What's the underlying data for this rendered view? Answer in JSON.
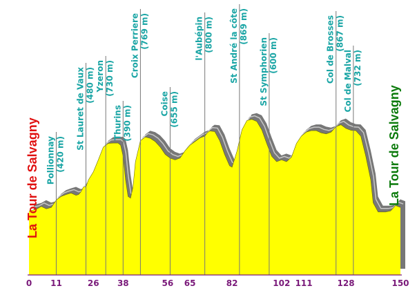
{
  "chart_data": {
    "type": "area",
    "start_label": "La Tour de Salvagny",
    "end_label": "La Tour de Salvagny",
    "colors": {
      "fill": "#ffff00",
      "shadow": "#777777",
      "shadow_light": "#c8c8c8",
      "start_text": "#e01010",
      "end_text": "#0a7a0a",
      "waypoint_text": "#1aa5a5",
      "tick_text": "#7a1a7a",
      "axis": "#7a1a7a",
      "marker": "#777777"
    },
    "x_ticks": [
      "0",
      "11",
      "26",
      "38",
      "56",
      "65",
      "82",
      "102",
      "111",
      "128",
      "150"
    ],
    "xlim": [
      0,
      150
    ],
    "waypoints": [
      {
        "name": "Pollionnay",
        "elev": "(420 m)",
        "km": 11
      },
      {
        "name": "St Lauret de Vaux",
        "elev": "(480 m)",
        "km": 23
      },
      {
        "name": "Yzeron",
        "elev": "(730 m)",
        "km": 31
      },
      {
        "name": "Thurins",
        "elev": "(390 m)",
        "km": 38
      },
      {
        "name": "Croix Perriere",
        "elev": "(769 m)",
        "km": 45
      },
      {
        "name": "Coise",
        "elev": "(655 m)",
        "km": 57
      },
      {
        "name": "l'Aubépin",
        "elev": "(800 m)",
        "km": 71
      },
      {
        "name": "St André la côte",
        "elev": "(869 m)",
        "km": 85
      },
      {
        "name": "St Symphorien",
        "elev": "(600 m)",
        "km": 97
      },
      {
        "name": "Col de Brosses",
        "elev": "(867 m)",
        "km": 124
      },
      {
        "name": "Col de Malval",
        "elev": "(732 m)",
        "km": 131
      }
    ],
    "profile": [
      [
        0,
        350
      ],
      [
        3,
        360
      ],
      [
        5,
        375
      ],
      [
        7,
        362
      ],
      [
        9,
        370
      ],
      [
        11,
        410
      ],
      [
        13,
        430
      ],
      [
        15,
        440
      ],
      [
        17,
        448
      ],
      [
        19,
        436
      ],
      [
        20,
        440
      ],
      [
        21,
        455
      ],
      [
        22,
        482
      ],
      [
        23,
        482
      ],
      [
        24,
        520
      ],
      [
        26,
        565
      ],
      [
        28,
        630
      ],
      [
        30,
        700
      ],
      [
        32,
        720
      ],
      [
        34,
        722
      ],
      [
        36,
        722
      ],
      [
        37,
        710
      ],
      [
        38,
        650
      ],
      [
        39,
        520
      ],
      [
        40,
        430
      ],
      [
        41,
        420
      ],
      [
        42,
        480
      ],
      [
        43,
        620
      ],
      [
        45,
        735
      ],
      [
        47,
        755
      ],
      [
        49,
        748
      ],
      [
        51,
        730
      ],
      [
        53,
        700
      ],
      [
        55,
        660
      ],
      [
        57,
        640
      ],
      [
        59,
        630
      ],
      [
        61,
        640
      ],
      [
        63,
        680
      ],
      [
        65,
        710
      ],
      [
        67,
        730
      ],
      [
        69,
        750
      ],
      [
        71,
        760
      ],
      [
        72,
        778
      ],
      [
        73,
        788
      ],
      [
        75,
        785
      ],
      [
        77,
        735
      ],
      [
        79,
        660
      ],
      [
        81,
        598
      ],
      [
        82,
        590
      ],
      [
        84,
        678
      ],
      [
        86,
        795
      ],
      [
        88,
        845
      ],
      [
        90,
        852
      ],
      [
        92,
        840
      ],
      [
        94,
        795
      ],
      [
        96,
        720
      ],
      [
        98,
        650
      ],
      [
        100,
        620
      ],
      [
        102,
        630
      ],
      [
        104,
        620
      ],
      [
        106,
        645
      ],
      [
        108,
        720
      ],
      [
        110,
        760
      ],
      [
        112,
        782
      ],
      [
        114,
        790
      ],
      [
        116,
        790
      ],
      [
        118,
        778
      ],
      [
        120,
        772
      ],
      [
        122,
        782
      ],
      [
        124,
        812
      ],
      [
        126,
        822
      ],
      [
        128,
        802
      ],
      [
        130,
        792
      ],
      [
        132,
        790
      ],
      [
        134,
        760
      ],
      [
        136,
        650
      ],
      [
        138,
        520
      ],
      [
        139,
        395
      ],
      [
        141,
        345
      ],
      [
        144,
        345
      ],
      [
        146,
        350
      ],
      [
        148,
        380
      ],
      [
        150,
        370
      ]
    ]
  }
}
